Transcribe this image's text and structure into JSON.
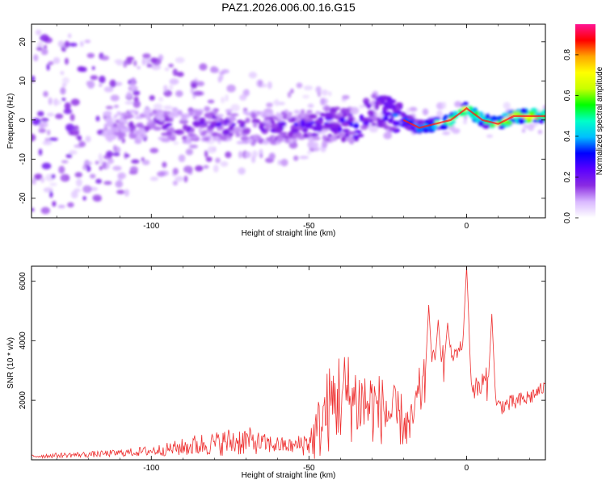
{
  "title": "PAZ1.2026.006.00.16.G15",
  "chart_data": [
    {
      "type": "heatmap",
      "name": "spectrogram",
      "xlabel": "Height of straight line (km)",
      "ylabel": "Frequency (Hz)",
      "xlim": [
        -138,
        25
      ],
      "ylim": [
        -25,
        24.5
      ],
      "x_ticks": [
        -100,
        -50,
        0
      ],
      "y_ticks": [
        -20,
        -10,
        0,
        10,
        20
      ],
      "x_tick_labels": [
        "-100",
        "-50",
        "0"
      ],
      "y_tick_labels": [
        "-20",
        "-10",
        "0",
        "10",
        "20"
      ],
      "colorbar": {
        "label": "Normalized spectral amplitude",
        "range": [
          0,
          0.95
        ],
        "ticks": [
          0.0,
          0.2,
          0.4,
          0.6,
          0.8
        ],
        "tick_labels": [
          "0.0",
          "0.2",
          "0.4",
          "0.6",
          "0.8"
        ],
        "colors": [
          "#ffffff",
          "#d9b8ff",
          "#8a2be2",
          "#5a00ff",
          "#0000ff",
          "#00bfff",
          "#00ffc8",
          "#00ff00",
          "#c8ff00",
          "#ffff00",
          "#ffa500",
          "#ff0000",
          "#ff1493"
        ]
      },
      "ridge": {
        "x": [
          -115,
          -110,
          -100,
          -90,
          -80,
          -70,
          -60,
          -50,
          -40,
          -35,
          -30,
          -25,
          -20,
          -15,
          -10,
          -5,
          0,
          5,
          10,
          15,
          20,
          25
        ],
        "freq": [
          -1,
          -2,
          -1,
          -2,
          -1,
          -2,
          -2,
          -1,
          -1,
          -2,
          3,
          2,
          0,
          -2,
          -1,
          0,
          3,
          0,
          -1,
          1,
          1,
          1
        ],
        "amplitude": [
          0.12,
          0.15,
          0.18,
          0.2,
          0.22,
          0.2,
          0.22,
          0.25,
          0.28,
          0.3,
          0.3,
          0.35,
          0.4,
          0.45,
          0.6,
          0.8,
          0.7,
          0.75,
          0.8,
          0.85,
          0.85,
          0.8
        ]
      }
    },
    {
      "type": "line",
      "name": "snr",
      "xlabel": "Height of straight line (km)",
      "ylabel": "SNR (10 * v/v)",
      "xlim": [
        -138,
        25
      ],
      "ylim": [
        0,
        6500
      ],
      "x_ticks": [
        -100,
        -50,
        0
      ],
      "y_ticks": [
        2000,
        4000,
        6000
      ],
      "x_tick_labels": [
        "-100",
        "-50",
        "0"
      ],
      "y_tick_labels": [
        "2000",
        "4000",
        "6000"
      ],
      "series": [
        {
          "name": "SNR",
          "color": "#ee3030",
          "x": [
            -138,
            -130,
            -120,
            -115,
            -110,
            -105,
            -100,
            -95,
            -90,
            -85,
            -80,
            -75,
            -70,
            -65,
            -60,
            -55,
            -50,
            -48,
            -45,
            -40,
            -35,
            -30,
            -25,
            -20,
            -18,
            -15,
            -12,
            -10,
            -8,
            -6,
            -4,
            -2,
            0,
            2,
            4,
            6,
            8,
            10,
            15,
            20,
            25
          ],
          "base": [
            120,
            150,
            180,
            200,
            230,
            260,
            300,
            350,
            420,
            500,
            550,
            600,
            650,
            550,
            500,
            450,
            600,
            800,
            1500,
            2200,
            2000,
            1800,
            1600,
            1300,
            1000,
            2200,
            2800,
            3000,
            3000,
            3200,
            3500,
            3800,
            3900,
            2400,
            2400,
            2600,
            2200,
            1800,
            1900,
            2100,
            2450
          ],
          "amp": [
            80,
            80,
            100,
            110,
            120,
            150,
            180,
            220,
            300,
            400,
            380,
            500,
            500,
            350,
            300,
            250,
            500,
            900,
            1400,
            1700,
            1400,
            1300,
            1100,
            900,
            700,
            900,
            900,
            800,
            900,
            800,
            300,
            200,
            500,
            300,
            500,
            600,
            300,
            300,
            300,
            300,
            200
          ],
          "peaks": [
            {
              "x": -12,
              "y": 5200
            },
            {
              "x": -9,
              "y": 4700
            },
            {
              "x": -6,
              "y": 4600
            },
            {
              "x": 0,
              "y": 6500
            },
            {
              "x": 8,
              "y": 4900
            }
          ]
        }
      ]
    }
  ]
}
